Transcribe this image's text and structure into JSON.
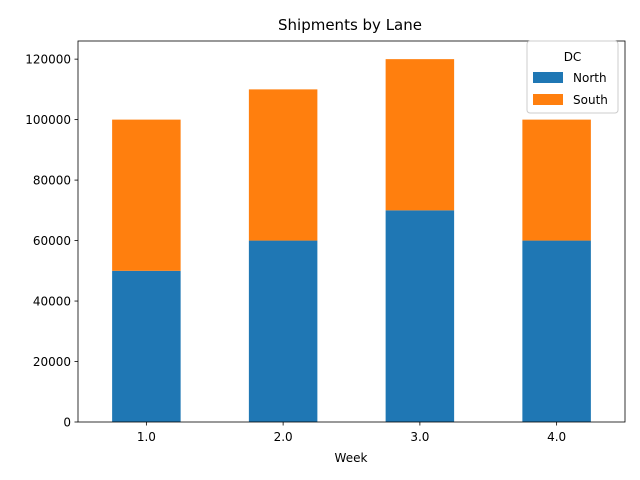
{
  "chart_data": {
    "type": "bar",
    "stacked": true,
    "title": "Shipments by Lane",
    "xlabel": "Week",
    "ylabel": "",
    "categories": [
      "1.0",
      "2.0",
      "3.0",
      "4.0"
    ],
    "series": [
      {
        "name": "North",
        "values": [
          50000,
          60000,
          70000,
          60000
        ],
        "color": "#1f77b4"
      },
      {
        "name": "South",
        "values": [
          50000,
          50000,
          50000,
          40000
        ],
        "color": "#ff7f0e"
      }
    ],
    "ylim": [
      0,
      126000
    ],
    "yticks": [
      0,
      20000,
      40000,
      60000,
      80000,
      100000,
      120000
    ],
    "ytick_labels": [
      "0",
      "20000",
      "40000",
      "60000",
      "80000",
      "100000",
      "120000"
    ],
    "grid": false,
    "legend": {
      "title": "DC",
      "placement": "upper-right"
    }
  }
}
